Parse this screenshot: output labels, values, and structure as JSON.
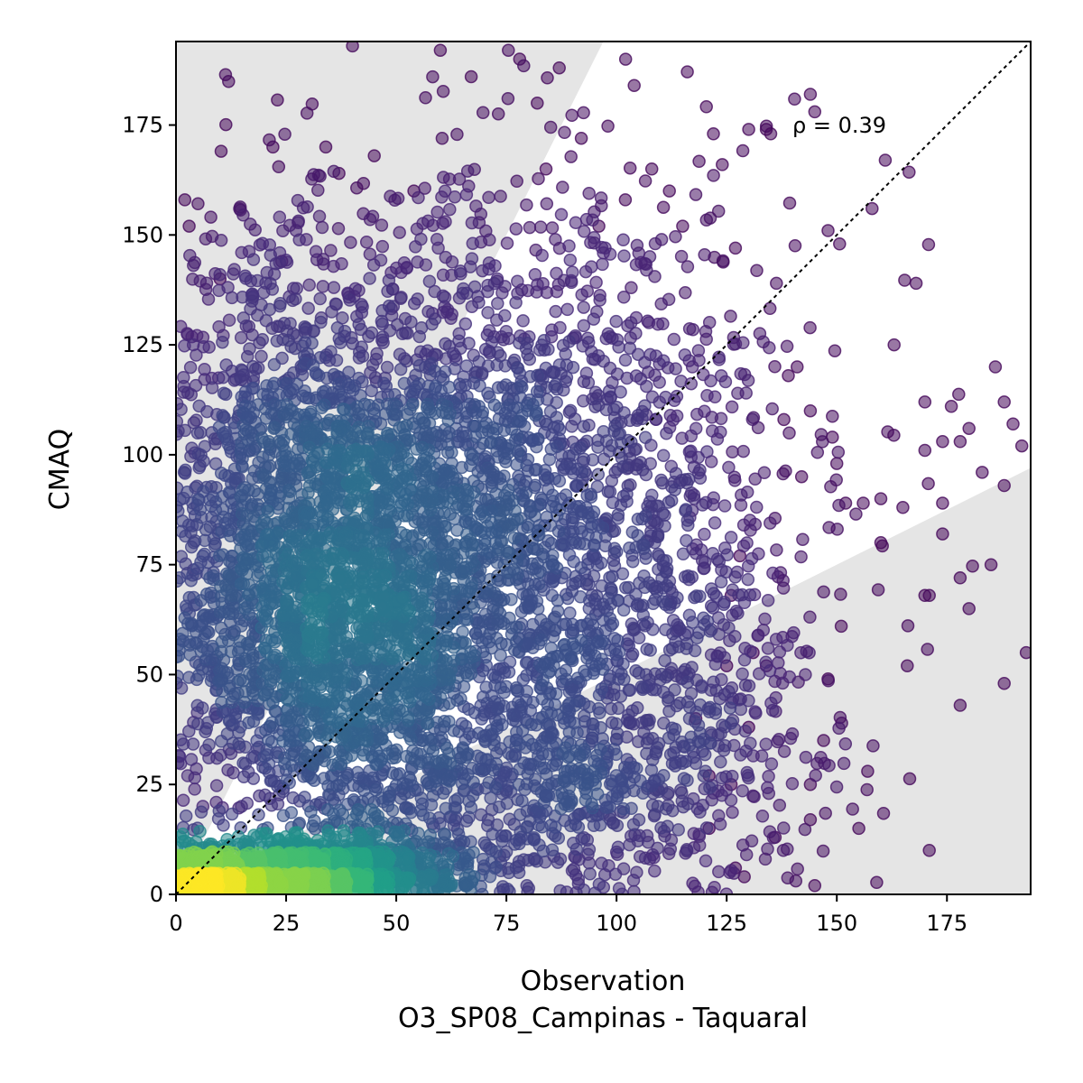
{
  "chart_data": {
    "type": "scatter",
    "title": "",
    "xlabel": "Observation",
    "xlabel2": "O3_SP08_Campinas - Taquaral",
    "ylabel": "CMAQ",
    "xlim": [
      0,
      194
    ],
    "ylim": [
      0,
      194
    ],
    "xticks": [
      0,
      25,
      50,
      75,
      100,
      125,
      150,
      175
    ],
    "yticks": [
      0,
      25,
      50,
      75,
      100,
      125,
      150,
      175
    ],
    "annotation": "ρ = 0.39",
    "reference_line": {
      "style": "dotted",
      "slope": 1,
      "intercept": 0,
      "color": "#000000"
    },
    "shaded_regions": {
      "color": "#e5e5e5",
      "description": "outside factor-of-2 band",
      "upper_slope": 2,
      "lower_slope": 0.5
    },
    "colormap": "viridis",
    "grid": false,
    "legend": "none",
    "density_clusters": [
      {
        "x": 38,
        "y": 62,
        "sx": 18,
        "sy": 30,
        "n": 2200
      },
      {
        "x": 65,
        "y": 88,
        "sx": 28,
        "sy": 35,
        "n": 1600
      },
      {
        "x": 20,
        "y": 90,
        "sx": 14,
        "sy": 35,
        "n": 700
      },
      {
        "x": 28,
        "y": 5,
        "sx": 18,
        "sy": 4,
        "n": 1400
      },
      {
        "x": 8,
        "y": 3,
        "sx": 6,
        "sy": 3,
        "n": 600
      },
      {
        "x": 100,
        "y": 70,
        "sx": 25,
        "sy": 40,
        "n": 1100
      },
      {
        "x": 90,
        "y": 25,
        "sx": 25,
        "sy": 18,
        "n": 600
      }
    ],
    "outlier_points": [
      [
        144,
        182
      ],
      [
        145,
        178
      ],
      [
        122,
        173
      ],
      [
        135,
        173
      ],
      [
        134,
        174
      ],
      [
        148,
        151
      ],
      [
        158,
        156
      ],
      [
        161,
        167
      ],
      [
        163,
        125
      ],
      [
        168,
        139
      ],
      [
        170,
        112
      ],
      [
        174,
        103
      ],
      [
        176,
        111
      ],
      [
        178,
        103
      ],
      [
        180,
        106
      ],
      [
        183,
        96
      ],
      [
        186,
        120
      ],
      [
        188,
        112
      ],
      [
        190,
        107
      ],
      [
        192,
        102
      ],
      [
        188,
        93
      ],
      [
        185,
        75
      ],
      [
        180,
        65
      ],
      [
        174,
        82
      ],
      [
        174,
        89
      ],
      [
        178,
        72
      ],
      [
        170,
        68
      ],
      [
        171,
        68
      ],
      [
        166,
        52
      ],
      [
        160,
        80
      ],
      [
        156,
        89
      ],
      [
        152,
        89
      ],
      [
        150,
        98
      ],
      [
        148,
        49
      ],
      [
        151,
        61
      ],
      [
        147,
        35
      ],
      [
        144,
        25
      ],
      [
        144,
        17
      ],
      [
        145,
        2
      ],
      [
        171,
        10
      ],
      [
        157,
        28
      ],
      [
        155,
        15
      ],
      [
        136,
        13
      ],
      [
        130,
        38
      ],
      [
        131,
        55
      ],
      [
        134,
        52
      ],
      [
        128,
        77
      ],
      [
        126,
        68
      ],
      [
        193,
        55
      ],
      [
        188,
        48
      ],
      [
        178,
        43
      ],
      [
        160,
        90
      ],
      [
        165,
        88
      ],
      [
        170,
        101
      ],
      [
        142,
        95
      ],
      [
        149,
        104
      ],
      [
        139,
        118
      ],
      [
        138,
        108
      ],
      [
        144,
        110
      ],
      [
        141,
        120
      ],
      [
        92,
        172
      ],
      [
        112,
        160
      ],
      [
        104,
        184
      ],
      [
        87,
        188
      ],
      [
        82,
        180
      ],
      [
        84,
        165
      ],
      [
        78,
        190
      ],
      [
        60,
        192
      ],
      [
        67,
        186
      ],
      [
        54,
        160
      ],
      [
        45,
        168
      ],
      [
        37,
        164
      ],
      [
        34,
        170
      ],
      [
        22,
        170
      ],
      [
        2,
        158
      ],
      [
        3,
        152
      ],
      [
        10,
        140
      ],
      [
        24,
        144
      ],
      [
        127,
        147
      ],
      [
        130,
        174
      ],
      [
        124,
        166
      ],
      [
        115,
        152
      ],
      [
        108,
        165
      ],
      [
        102,
        158
      ],
      [
        96,
        152
      ],
      [
        125,
        52
      ],
      [
        118,
        40
      ],
      [
        121,
        27
      ],
      [
        126,
        25
      ],
      [
        127,
        6
      ],
      [
        129,
        4
      ],
      [
        121,
        15
      ]
    ]
  }
}
